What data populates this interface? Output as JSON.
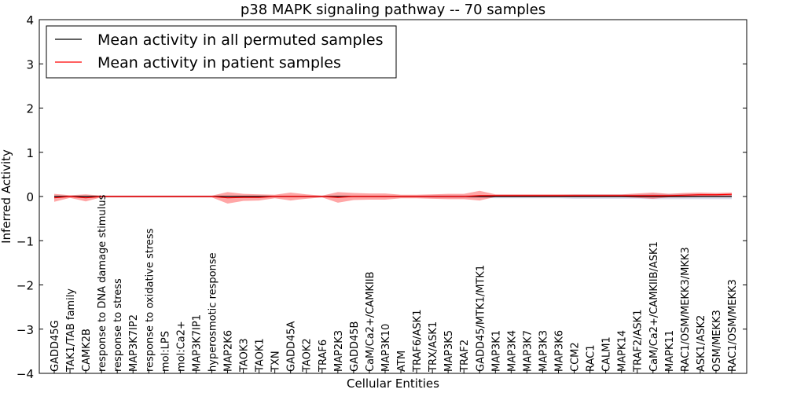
{
  "chart_data": {
    "type": "line",
    "title": "p38 MAPK signaling pathway -- 70 samples",
    "xlabel": "Cellular Entities",
    "ylabel": "Inferred Activity",
    "ylim": [
      -4,
      4
    ],
    "yticks": [
      "−4",
      "−3",
      "−2",
      "−1",
      "0",
      "1",
      "2",
      "3",
      "4"
    ],
    "ytick_values": [
      -4,
      -3,
      -2,
      -1,
      0,
      1,
      2,
      3,
      4
    ],
    "legend_position": "upper-left",
    "categories": [
      "GADD45G",
      "TAK1/TAB family",
      "CAMK2B",
      "response to DNA damage stimulus",
      "response to stress",
      "MAP3K7IP2",
      "response to oxidative stress",
      "mol:LPS",
      "mol:Ca2+",
      "MAP3K7IP1",
      "hyperosmotic response",
      "MAP2K6",
      "TAOK3",
      "TAOK1",
      "TXN",
      "GADD45A",
      "TAOK2",
      "TRAF6",
      "MAP2K3",
      "GADD45B",
      "CaM/Ca2+/CAMKIIB",
      "MAP3K10",
      "ATM",
      "TRAF6/ASK1",
      "TRX/ASK1",
      "MAP3K5",
      "TRAF2",
      "GADD45/MTK1/MTK1",
      "MAP3K1",
      "MAP3K4",
      "MAP3K7",
      "MAP3K3",
      "MAP3K6",
      "CCM2",
      "RAC1",
      "CALM1",
      "MAPK14",
      "TRAF2/ASK1",
      "CaM/Ca2+/CAMKIIB/ASK1",
      "MAPK11",
      "RAC1/OSM/MEKK3/MKK3",
      "ASK1/ASK2",
      "OSM/MEKK3",
      "RAC1/OSM/MEKK3"
    ],
    "series": [
      {
        "name": "Mean activity in all permuted samples",
        "color": "#000000",
        "band_color": "#9aa0cc",
        "values": [
          0,
          0,
          0,
          0,
          0,
          0,
          0,
          0,
          0,
          0,
          0,
          0,
          0,
          0,
          0,
          0,
          0,
          0,
          0,
          0,
          0,
          0,
          0,
          0,
          0,
          0,
          0,
          0,
          0,
          0,
          0,
          0,
          0,
          0,
          0,
          0,
          0,
          0,
          0,
          0,
          0,
          0,
          0,
          0
        ],
        "spread": [
          0.02,
          0.02,
          0.02,
          0.02,
          0.02,
          0.02,
          0.02,
          0.02,
          0.02,
          0.02,
          0.02,
          0.02,
          0.02,
          0.02,
          0.02,
          0.02,
          0.02,
          0.02,
          0.02,
          0.02,
          0.02,
          0.02,
          0.02,
          0.02,
          0.03,
          0.03,
          0.03,
          0.03,
          0.04,
          0.04,
          0.04,
          0.04,
          0.04,
          0.05,
          0.05,
          0.05,
          0.05,
          0.05,
          0.06,
          0.06,
          0.06,
          0.06,
          0.06,
          0.06
        ]
      },
      {
        "name": "Mean activity in patient samples",
        "color": "#ff0000",
        "band_color": "#ff0000",
        "values": [
          -0.03,
          0.0,
          -0.03,
          0.0,
          0.0,
          0.0,
          0.0,
          0.0,
          0.0,
          0.0,
          0.0,
          -0.03,
          -0.02,
          -0.02,
          0.0,
          0.0,
          0.0,
          0.0,
          -0.02,
          0.0,
          0.0,
          0.0,
          0.0,
          0.0,
          0.0,
          0.0,
          0.0,
          0.02,
          0.02,
          0.02,
          0.02,
          0.02,
          0.02,
          0.02,
          0.02,
          0.02,
          0.02,
          0.02,
          0.02,
          0.02,
          0.03,
          0.04,
          0.04,
          0.05
        ],
        "spread": [
          0.09,
          0.03,
          0.08,
          0.02,
          0.02,
          0.02,
          0.02,
          0.02,
          0.02,
          0.02,
          0.02,
          0.13,
          0.08,
          0.07,
          0.04,
          0.09,
          0.05,
          0.02,
          0.12,
          0.08,
          0.07,
          0.07,
          0.04,
          0.04,
          0.05,
          0.06,
          0.06,
          0.11,
          0.03,
          0.03,
          0.03,
          0.03,
          0.03,
          0.03,
          0.03,
          0.03,
          0.03,
          0.05,
          0.07,
          0.04,
          0.05,
          0.05,
          0.04,
          0.04
        ]
      }
    ]
  }
}
